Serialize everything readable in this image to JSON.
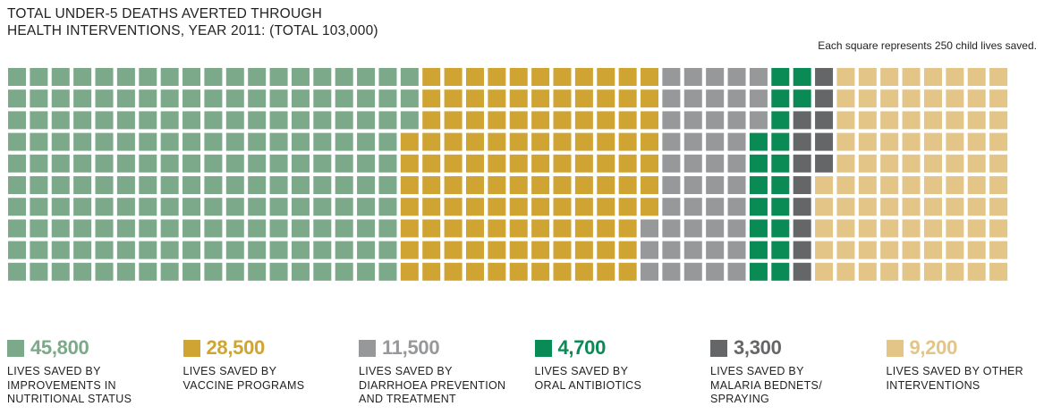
{
  "chart_data": {
    "type": "waffle",
    "title_lines": [
      "TOTAL UNDER-5 DEATHS AVERTED THROUGH",
      "HEALTH INTERVENTIONS, YEAR 2011: (TOTAL 103,000)"
    ],
    "note": "Each square represents 250 child lives saved.",
    "unit_per_square": 250,
    "total": 103000,
    "grid": {
      "rows": 10,
      "cols": 46,
      "fill_order": "column-major, top-to-bottom"
    },
    "categories": [
      {
        "value": 45800,
        "value_label": "45,800",
        "label_lines": [
          "LIVES SAVED BY",
          "IMPROVEMENTS IN",
          "NUTRITIONAL STATUS"
        ],
        "color": "#7ba989"
      },
      {
        "value": 28500,
        "value_label": "28,500",
        "label_lines": [
          "LIVES SAVED BY",
          "VACCINE PROGRAMS"
        ],
        "color": "#cfa432"
      },
      {
        "value": 11500,
        "value_label": "11,500",
        "label_lines": [
          "LIVES SAVED BY",
          "DIARRHOEA PREVENTION",
          "AND TREATMENT"
        ],
        "color": "#97989a"
      },
      {
        "value": 4700,
        "value_label": "4,700",
        "label_lines": [
          "LIVES SAVED BY",
          "ORAL ANTIBIOTICS"
        ],
        "color": "#0a8a55"
      },
      {
        "value": 3300,
        "value_label": "3,300",
        "label_lines": [
          "LIVES SAVED BY",
          "MALARIA BEDNETS/",
          "SPRAYING"
        ],
        "color": "#656668"
      },
      {
        "value": 9200,
        "value_label": "9,200",
        "label_lines": [
          "LIVES SAVED BY OTHER",
          "INTERVENTIONS"
        ],
        "color": "#e2c587"
      }
    ]
  }
}
